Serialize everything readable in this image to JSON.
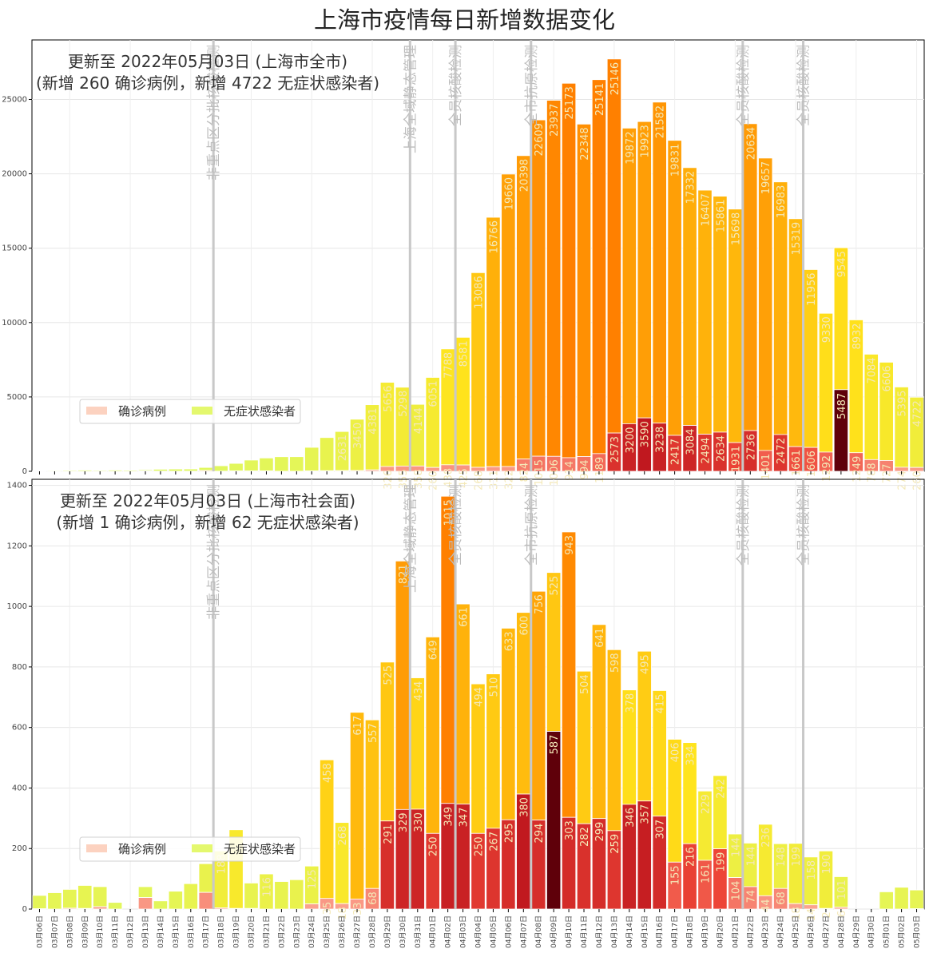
{
  "title": "上海市疫情每日新增数据变化",
  "legend": {
    "confirmed": "确诊病例",
    "asymptomatic": "无症状感染者"
  },
  "chart_data": [
    {
      "type": "bar",
      "stacked": true,
      "annotation": [
        "更新至 2022年05月03日 (上海市全市)",
        "(新增 260 确诊病例，新增 4722 无症状感染者)"
      ],
      "ylim": [
        0,
        29000
      ],
      "yticks": [
        0,
        5000,
        10000,
        15000,
        20000,
        25000
      ],
      "grid": true,
      "legend_position": "lower-left",
      "categories": [
        "03月06日",
        "03月07日",
        "03月08日",
        "03月09日",
        "03月10日",
        "03月11日",
        "03月12日",
        "03月13日",
        "03月14日",
        "03月15日",
        "03月16日",
        "03月17日",
        "03月18日",
        "03月19日",
        "03月20日",
        "03月21日",
        "03月22日",
        "03月23日",
        "03月24日",
        "03月25日",
        "03月26日",
        "03月27日",
        "03月28日",
        "03月29日",
        "03月30日",
        "03月31日",
        "04月01日",
        "04月02日",
        "04月03日",
        "04月04日",
        "04月05日",
        "04月06日",
        "04月07日",
        "04月08日",
        "04月09日",
        "04月10日",
        "04月11日",
        "04月12日",
        "04月13日",
        "04月14日",
        "04月15日",
        "04月16日",
        "04月17日",
        "04月18日",
        "04月19日",
        "04月20日",
        "04月21日",
        "04月22日",
        "04月23日",
        "04月24日",
        "04月25日",
        "04月26日",
        "04月27日",
        "04月28日",
        "04月29日",
        "04月30日",
        "05月01日",
        "05月02日",
        "05月03日"
      ],
      "series": [
        {
          "name": "确诊病例",
          "values": [
            3,
            4,
            3,
            4,
            11,
            5,
            1,
            41,
            9,
            5,
            8,
            57,
            8,
            24,
            24,
            31,
            4,
            4,
            29,
            38,
            45,
            50,
            96,
            326,
            355,
            358,
            260,
            438,
            425,
            268,
            311,
            322,
            824,
            1015,
            1006,
            914,
            994,
            1189,
            2573,
            3200,
            3590,
            3238,
            2417,
            3084,
            2494,
            2634,
            1931,
            2736,
            1401,
            2472,
            1661,
            1606,
            1292,
            5487,
            1249,
            788,
            727,
            274,
            260
          ],
          "labels": [
            "",
            "",
            "",
            "",
            "",
            "",
            "",
            "",
            "",
            "",
            "",
            "",
            "",
            "",
            "",
            "",
            "",
            "",
            "",
            "",
            "",
            "",
            "",
            "326",
            "355",
            "358",
            "260",
            "438",
            "425",
            "268",
            "311",
            "322",
            "824",
            "1015",
            "1006",
            "914",
            "994",
            "1189",
            "2573",
            "3200",
            "3590",
            "3238",
            "2417",
            "3084",
            "2494",
            "2634",
            "1931",
            "2736",
            "1401",
            "2472",
            "1661",
            "1606",
            "1292",
            "5487",
            "1249",
            "788",
            "727",
            "274",
            "260"
          ]
        },
        {
          "name": "无症状感染者",
          "values": [
            45,
            50,
            62,
            76,
            64,
            76,
            70,
            76,
            130,
            150,
            150,
            203,
            366,
            509,
            731,
            865,
            977,
            979,
            1582,
            2231,
            2631,
            3450,
            4381,
            5656,
            5298,
            4144,
            6051,
            7788,
            8581,
            13086,
            16766,
            19660,
            20398,
            22609,
            23937,
            25173,
            22348,
            25141,
            25146,
            19872,
            19923,
            21582,
            19831,
            17332,
            16407,
            15861,
            15698,
            20634,
            19657,
            16983,
            15319,
            11956,
            9330,
            9545,
            8932,
            7084,
            6606,
            5395,
            4722
          ],
          "labels": [
            "",
            "",
            "",
            "",
            "",
            "",
            "",
            "",
            "",
            "",
            "",
            "",
            "",
            "",
            "",
            "",
            "",
            "",
            "",
            "",
            "2631",
            "3450",
            "4381",
            "5656",
            "5298",
            "4144",
            "6051",
            "7788",
            "8581",
            "13086",
            "16766",
            "19660",
            "20398",
            "22609",
            "23937",
            "25173",
            "22348",
            "25141",
            "25146",
            "19872",
            "19923",
            "21582",
            "19831",
            "17332",
            "16407",
            "15861",
            "15698",
            "20634",
            "19657",
            "16983",
            "15319",
            "11956",
            "9330",
            "9545",
            "8932",
            "7084",
            "6606",
            "5395",
            "4722"
          ]
        }
      ],
      "events": [
        {
          "category": "03月18日",
          "label": "非重点区分批核酸检测"
        },
        {
          "category": "03月31日",
          "label": "上海全域静态管理"
        },
        {
          "category": "04月03日",
          "label": "全员核酸检测"
        },
        {
          "category": "04月08日",
          "label": "全市抗原检测"
        },
        {
          "category": "04月22日",
          "label": "全员核酸检测"
        },
        {
          "category": "04月26日",
          "label": "全员核酸检测"
        }
      ]
    },
    {
      "type": "bar",
      "stacked": true,
      "annotation": [
        "更新至 2022年05月03日 (上海市社会面)",
        "(新增 1 确诊病例，新增 62 无症状感染者)"
      ],
      "ylim": [
        0,
        1420
      ],
      "yticks": [
        0,
        200,
        400,
        600,
        800,
        1000,
        1200,
        1400
      ],
      "grid": true,
      "legend_position": "lower-left",
      "series": [
        {
          "name": "确诊病例",
          "values": [
            1,
            0,
            3,
            2,
            8,
            0,
            0,
            38,
            0,
            0,
            0,
            55,
            4,
            2,
            2,
            0,
            0,
            0,
            17,
            35,
            18,
            33,
            68,
            291,
            329,
            330,
            250,
            349,
            347,
            250,
            267,
            295,
            380,
            294,
            587,
            303,
            282,
            299,
            259,
            346,
            357,
            307,
            155,
            216,
            161,
            199,
            104,
            74,
            44,
            68,
            18,
            14,
            2,
            6,
            0,
            0,
            0,
            0,
            1
          ],
          "labels": [
            "",
            "",
            "",
            "",
            "",
            "",
            "",
            "",
            "",
            "",
            "",
            "",
            "",
            "",
            "",
            "",
            "",
            "",
            "",
            "35",
            "18",
            "33",
            "68",
            "291",
            "329",
            "330",
            "250",
            "349",
            "347",
            "250",
            "267",
            "295",
            "380",
            "294",
            "587",
            "303",
            "282",
            "299",
            "259",
            "346",
            "357",
            "307",
            "155",
            "216",
            "161",
            "199",
            "104",
            "74",
            "44",
            "68",
            "18",
            "14",
            "2",
            "6",
            "",
            "",
            "",
            "",
            ""
          ]
        },
        {
          "name": "无症状感染者",
          "values": [
            44,
            54,
            62,
            76,
            66,
            22,
            0,
            36,
            27,
            59,
            84,
            95,
            188,
            260,
            84,
            116,
            91,
            97,
            125,
            458,
            268,
            617,
            557,
            525,
            821,
            434,
            649,
            1015,
            661,
            494,
            510,
            633,
            600,
            756,
            525,
            943,
            504,
            641,
            598,
            378,
            495,
            415,
            406,
            334,
            229,
            242,
            144,
            144,
            236,
            148,
            199,
            158,
            190,
            101,
            0,
            0,
            57,
            72,
            62
          ],
          "labels": [
            "",
            "",
            "",
            "",
            "",
            "",
            "",
            "",
            "",
            "",
            "",
            "",
            "188",
            "",
            "",
            "116",
            "",
            "",
            "125",
            "458",
            "268",
            "617",
            "557",
            "525",
            "821",
            "434",
            "649",
            "1015",
            "661",
            "494",
            "510",
            "633",
            "600",
            "756",
            "525",
            "943",
            "504",
            "641",
            "598",
            "378",
            "495",
            "415",
            "406",
            "334",
            "229",
            "242",
            "144",
            "144",
            "236",
            "148",
            "199",
            "158",
            "190",
            "101",
            "",
            "",
            "",
            "",
            ""
          ]
        }
      ],
      "events": [
        {
          "category": "03月18日",
          "label": "非重点区分批核酸检测"
        },
        {
          "category": "03月31日",
          "label": "上海全域静态管理"
        },
        {
          "category": "04月03日",
          "label": "全员核酸检测"
        },
        {
          "category": "04月08日",
          "label": "全市抗原检测"
        },
        {
          "category": "04月22日",
          "label": "全员核酸检测"
        },
        {
          "category": "04月26日",
          "label": "全员核酸检测"
        }
      ]
    }
  ]
}
